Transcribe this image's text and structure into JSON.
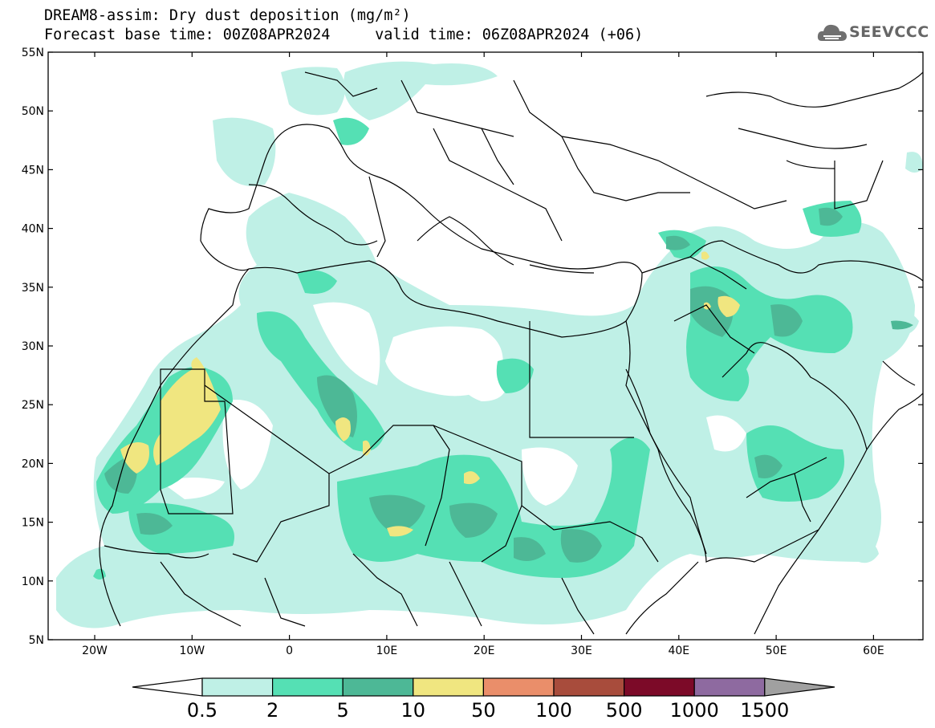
{
  "header": {
    "line1": "DREAM8-assim: Dry dust deposition (mg/m²)",
    "line2": "Forecast base time: 00Z08APR2024     valid time: 06Z08APR2024 (+06)"
  },
  "logo": {
    "text": "SEEVCCC",
    "icon": "cloud-icon"
  },
  "map": {
    "lat_ticks": [
      "55N",
      "50N",
      "45N",
      "40N",
      "35N",
      "30N",
      "25N",
      "20N",
      "15N",
      "10N",
      "5N"
    ],
    "lon_ticks": [
      "20W",
      "10W",
      "0",
      "10E",
      "20E",
      "30E",
      "40E",
      "50E",
      "60E"
    ]
  },
  "colorbar": {
    "labels": [
      "0.5",
      "2",
      "5",
      "10",
      "50",
      "100",
      "500",
      "1000",
      "1500"
    ],
    "colors": [
      "#bff0e6",
      "#55e0b4",
      "#4db896",
      "#f0e680",
      "#ea8e6a",
      "#a84c3c",
      "#7c0a28",
      "#8e6aa0"
    ],
    "under_color": "#ffffff",
    "over_color": "#a0a0a0"
  },
  "palette": {
    "land": "#ffffff",
    "border": "#000000"
  }
}
